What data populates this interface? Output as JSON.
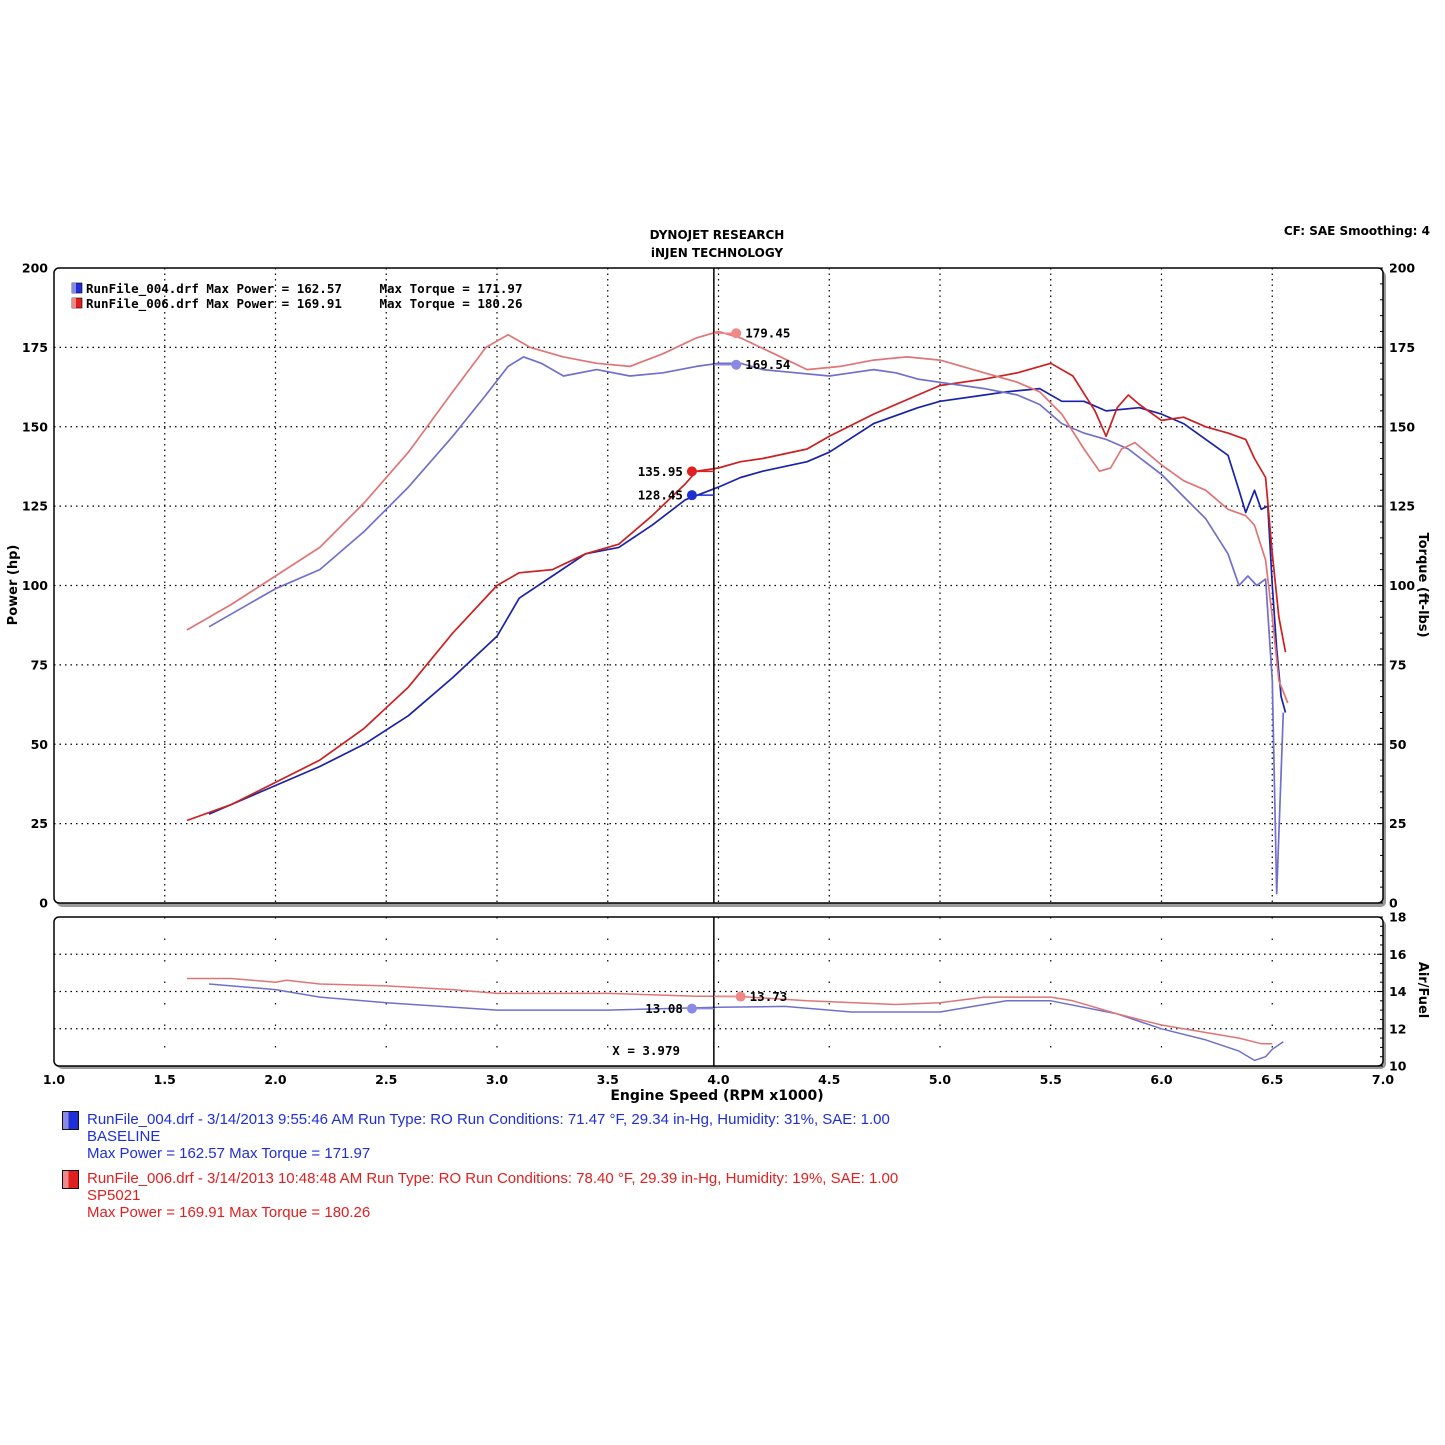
{
  "header": {
    "title_line1": "DYNOJET RESEARCH",
    "title_line2": "iNJEN TECHNOLOGY",
    "cf_label": "CF: SAE  Smoothing: 4"
  },
  "chart_data": [
    {
      "type": "line",
      "panel": "power_torque",
      "xlabel": "Engine Speed (RPM x1000)",
      "ylabel_left": "Power (hp)",
      "ylabel_right": "Torque (ft-lbs)",
      "xlim": [
        1.0,
        7.0
      ],
      "ylim": [
        0,
        200
      ],
      "x_ticks": [
        "1.0",
        "1.5",
        "2.0",
        "2.5",
        "3.0",
        "3.5",
        "4.0",
        "4.5",
        "5.0",
        "5.5",
        "6.0",
        "6.5",
        "7.0"
      ],
      "y_ticks": [
        "0",
        "25",
        "50",
        "75",
        "100",
        "125",
        "150",
        "175",
        "200"
      ],
      "grid": true,
      "inline_legend": [
        {
          "text": "RunFile_004.drf Max Power = 162.57     Max Torque = 171.97",
          "color": "#1f2fd6"
        },
        {
          "text": "RunFile_006.drf Max Power = 169.91     Max Torque = 180.26",
          "color": "#e02020"
        }
      ],
      "cursor_x": 3.979,
      "series": [
        {
          "name": "RunFile_004.drf",
          "kind": "power",
          "color": "#1a23a8",
          "x": [
            1.7,
            2.0,
            2.2,
            2.4,
            2.6,
            2.8,
            3.0,
            3.1,
            3.25,
            3.4,
            3.55,
            3.7,
            3.85,
            4.0,
            4.1,
            4.2,
            4.4,
            4.5,
            4.7,
            4.9,
            5.0,
            5.2,
            5.3,
            5.45,
            5.55,
            5.65,
            5.75,
            5.9,
            6.0,
            6.1,
            6.2,
            6.3,
            6.35,
            6.38,
            6.42,
            6.45,
            6.48,
            6.5,
            6.52,
            6.54,
            6.56
          ],
          "y": [
            28,
            37,
            43,
            50,
            59,
            71,
            84,
            96,
            103,
            110,
            112,
            119,
            127,
            131,
            134,
            136,
            139,
            142,
            151,
            156,
            158,
            160,
            161,
            162,
            158,
            158,
            155,
            156,
            154,
            151,
            146,
            141,
            130,
            123,
            130,
            124,
            125,
            100,
            80,
            65,
            60
          ]
        },
        {
          "name": "RunFile_006.drf",
          "kind": "power",
          "color": "#cc1f1f",
          "x": [
            1.6,
            1.8,
            2.0,
            2.2,
            2.4,
            2.6,
            2.8,
            3.0,
            3.1,
            3.25,
            3.4,
            3.55,
            3.7,
            3.85,
            3.9,
            4.0,
            4.1,
            4.2,
            4.4,
            4.5,
            4.7,
            4.9,
            5.0,
            5.2,
            5.35,
            5.5,
            5.6,
            5.7,
            5.75,
            5.8,
            5.85,
            5.9,
            6.0,
            6.1,
            6.2,
            6.3,
            6.38,
            6.42,
            6.47,
            6.5,
            6.53,
            6.56
          ],
          "y": [
            26,
            31,
            38,
            45,
            55,
            68,
            85,
            100,
            104,
            105,
            110,
            113,
            122,
            132,
            136,
            137,
            139,
            140,
            143,
            147,
            154,
            160,
            163,
            165,
            167,
            170,
            166,
            155,
            147,
            156,
            160,
            157,
            152,
            153,
            150,
            148,
            146,
            140,
            134,
            110,
            90,
            79
          ]
        },
        {
          "name": "RunFile_004.drf",
          "kind": "torque",
          "color": "#7070cc",
          "x": [
            1.7,
            1.85,
            2.0,
            2.2,
            2.4,
            2.6,
            2.8,
            2.95,
            3.05,
            3.12,
            3.2,
            3.3,
            3.45,
            3.6,
            3.75,
            3.9,
            4.0,
            4.1,
            4.2,
            4.35,
            4.5,
            4.6,
            4.7,
            4.8,
            4.9,
            5.0,
            5.2,
            5.35,
            5.45,
            5.55,
            5.65,
            5.75,
            5.85,
            6.0,
            6.1,
            6.2,
            6.3,
            6.35,
            6.39,
            6.43,
            6.47,
            6.5,
            6.52,
            6.55
          ],
          "y": [
            87,
            93,
            99,
            105,
            117,
            131,
            147,
            160,
            169,
            172,
            170,
            166,
            168,
            166,
            167,
            169,
            170,
            170,
            168,
            167,
            166,
            167,
            168,
            167,
            165,
            164,
            162,
            160,
            157,
            151,
            148,
            146,
            143,
            135,
            128,
            121,
            110,
            100,
            103,
            100,
            102,
            70,
            3,
            60
          ]
        },
        {
          "name": "RunFile_006.drf",
          "kind": "torque",
          "color": "#e07575",
          "x": [
            1.6,
            1.8,
            2.0,
            2.2,
            2.4,
            2.6,
            2.8,
            2.95,
            3.05,
            3.15,
            3.3,
            3.45,
            3.6,
            3.75,
            3.9,
            4.0,
            4.1,
            4.25,
            4.4,
            4.55,
            4.7,
            4.85,
            5.0,
            5.2,
            5.35,
            5.45,
            5.55,
            5.65,
            5.72,
            5.77,
            5.82,
            5.88,
            6.0,
            6.1,
            6.2,
            6.3,
            6.38,
            6.42,
            6.47,
            6.5,
            6.53,
            6.57
          ],
          "y": [
            86,
            94,
            103,
            112,
            126,
            142,
            161,
            175,
            179,
            175,
            172,
            170,
            169,
            173,
            178,
            180,
            178,
            173,
            168,
            169,
            171,
            172,
            171,
            167,
            164,
            161,
            154,
            143,
            136,
            137,
            143,
            145,
            138,
            133,
            130,
            124,
            122,
            119,
            108,
            90,
            70,
            63
          ]
        }
      ],
      "markers": [
        {
          "series": "RunFile_006.drf torque",
          "x": 4.08,
          "y": 179.45,
          "label": "179.45",
          "color": "#ef8888",
          "label_side": "right"
        },
        {
          "series": "RunFile_004.drf torque",
          "x": 4.08,
          "y": 169.54,
          "label": "169.54",
          "color": "#8a8ae6",
          "label_side": "right"
        },
        {
          "series": "RunFile_006.drf power",
          "x": 3.88,
          "y": 135.95,
          "label": "135.95",
          "color": "#e02020",
          "label_side": "left"
        },
        {
          "series": "RunFile_004.drf power",
          "x": 3.88,
          "y": 128.45,
          "label": "128.45",
          "color": "#1f2fd6",
          "label_side": "left"
        }
      ]
    },
    {
      "type": "line",
      "panel": "air_fuel",
      "ylabel_right": "Air/Fuel",
      "xlim": [
        1.0,
        7.0
      ],
      "ylim": [
        10,
        18
      ],
      "y_ticks": [
        "10",
        "12",
        "14",
        "16",
        "18"
      ],
      "grid": true,
      "cursor_label": "X = 3.979",
      "series": [
        {
          "name": "RunFile_004.drf",
          "color": "#7070cc",
          "x": [
            1.7,
            2.0,
            2.2,
            2.5,
            3.0,
            3.5,
            4.0,
            4.3,
            4.6,
            5.0,
            5.3,
            5.5,
            5.8,
            6.0,
            6.2,
            6.35,
            6.42,
            6.47,
            6.5,
            6.55
          ],
          "y": [
            14.4,
            14.1,
            13.7,
            13.4,
            13.0,
            13.0,
            13.15,
            13.2,
            12.9,
            12.9,
            13.5,
            13.5,
            12.8,
            12.0,
            11.4,
            10.8,
            10.3,
            10.5,
            10.9,
            11.3
          ]
        },
        {
          "name": "RunFile_006.drf",
          "color": "#e07575",
          "x": [
            1.6,
            1.8,
            2.0,
            2.05,
            2.2,
            2.5,
            2.8,
            3.0,
            3.5,
            3.9,
            4.0,
            4.1,
            4.4,
            4.8,
            5.0,
            5.2,
            5.5,
            5.6,
            5.8,
            6.0,
            6.2,
            6.35,
            6.45,
            6.5
          ],
          "y": [
            14.7,
            14.7,
            14.5,
            14.6,
            14.4,
            14.3,
            14.1,
            13.9,
            13.9,
            13.75,
            13.75,
            13.73,
            13.5,
            13.3,
            13.4,
            13.7,
            13.7,
            13.5,
            12.8,
            12.2,
            11.8,
            11.5,
            11.2,
            11.2
          ]
        }
      ],
      "markers": [
        {
          "series": "RunFile_006.drf",
          "x": 4.1,
          "y": 13.73,
          "label": "13.73",
          "color": "#ef8888",
          "label_side": "right"
        },
        {
          "series": "RunFile_004.drf",
          "x": 3.88,
          "y": 13.08,
          "label": "13.08",
          "color": "#8a8ae6",
          "label_side": "left"
        }
      ]
    }
  ],
  "legend": {
    "run1": {
      "color": "#1f2fd6",
      "line1": "RunFile_004.drf - 3/14/2013 9:55:46 AM  Run Type: RO  Run Conditions: 71.47 °F, 29.34 in-Hg,  Humidity:  31%, SAE: 1.00",
      "line2": "BASELINE",
      "line3": "Max Power = 162.57  Max Torque = 171.97"
    },
    "run2": {
      "color": "#e02020",
      "line1": "RunFile_006.drf - 3/14/2013 10:48:48 AM  Run Type: RO  Run Conditions: 78.40 °F, 29.39 in-Hg,  Humidity:  19%, SAE: 1.00",
      "line2": "SP5021",
      "line3": "Max Power = 169.91  Max Torque = 180.26"
    }
  }
}
